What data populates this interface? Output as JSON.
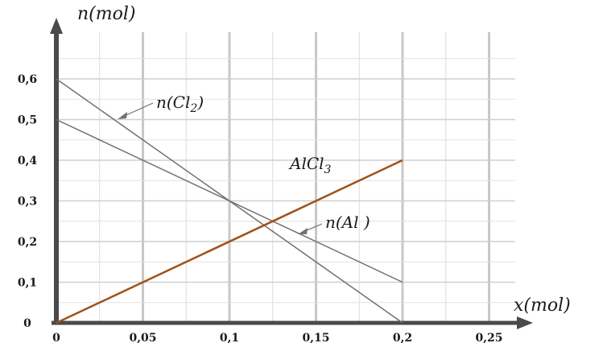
{
  "chart_data": {
    "type": "line",
    "title": "",
    "xlabel": "x(mol)",
    "ylabel": "n(mol)",
    "xlim": [
      0,
      0.25
    ],
    "ylim": [
      0,
      0.6
    ],
    "grid": true,
    "x_ticks": [
      {
        "value": 0,
        "label": "0"
      },
      {
        "value": 0.05,
        "label": "0,05"
      },
      {
        "value": 0.1,
        "label": "0,1"
      },
      {
        "value": 0.15,
        "label": "0,15"
      },
      {
        "value": 0.2,
        "label": "0,2"
      },
      {
        "value": 0.25,
        "label": "0,25"
      }
    ],
    "y_ticks": [
      {
        "value": 0,
        "label": "0"
      },
      {
        "value": 0.1,
        "label": "0,1"
      },
      {
        "value": 0.2,
        "label": "0,2"
      },
      {
        "value": 0.3,
        "label": "0,3"
      },
      {
        "value": 0.4,
        "label": "0,4"
      },
      {
        "value": 0.5,
        "label": "0,5"
      },
      {
        "value": 0.6,
        "label": "0,6"
      }
    ],
    "series": [
      {
        "name": "n(Cl2)",
        "label_base": "n(Cl",
        "label_sub": "2",
        "label_tail": ")",
        "color": "#707070",
        "points": [
          [
            0,
            0.6
          ],
          [
            0.2,
            0
          ]
        ]
      },
      {
        "name": "n(Al)",
        "label_base": "n(Al",
        "label_sub": "",
        "label_tail": " )",
        "color": "#707070",
        "points": [
          [
            0,
            0.5
          ],
          [
            0.2,
            0.1
          ]
        ]
      },
      {
        "name": "AlCl3",
        "label_base": "AlCl",
        "label_sub": "3",
        "label_tail": "",
        "color": "#a0521a",
        "points": [
          [
            0,
            0
          ],
          [
            0.2,
            0.4
          ]
        ]
      }
    ]
  }
}
